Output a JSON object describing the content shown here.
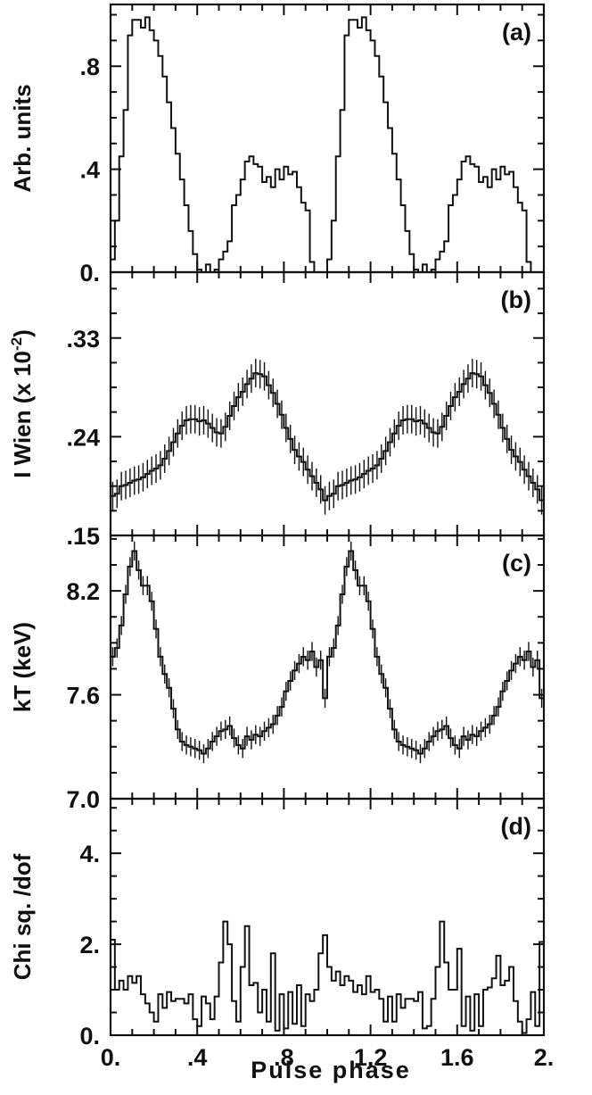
{
  "chart_data": [
    {
      "type": "line",
      "panel_label": "(a)",
      "ylabel": "Arb. units",
      "yticks": [
        0.0,
        0.4,
        0.8
      ],
      "ytick_labels": [
        "0.",
        ".4",
        ".8"
      ],
      "ylim": [
        0.0,
        1.04
      ],
      "xlim": [
        0.0,
        2.0
      ],
      "step": 0.02,
      "values": [
        0.05,
        0.2,
        0.45,
        0.63,
        0.92,
        0.98,
        0.98,
        0.95,
        0.99,
        0.94,
        0.9,
        0.84,
        0.76,
        0.66,
        0.56,
        0.46,
        0.36,
        0.26,
        0.16,
        0.07,
        0.01,
        0.0,
        0.03,
        0.0,
        0.01,
        0.05,
        0.08,
        0.12,
        0.26,
        0.3,
        0.36,
        0.43,
        0.45,
        0.42,
        0.41,
        0.35,
        0.37,
        0.33,
        0.4,
        0.36,
        0.41,
        0.38,
        0.39,
        0.33,
        0.27,
        0.24,
        0.04,
        0.0,
        0.0,
        0.0,
        0.05,
        0.2,
        0.45,
        0.63,
        0.92,
        0.98,
        0.98,
        0.95,
        0.99,
        0.94,
        0.9,
        0.84,
        0.76,
        0.66,
        0.56,
        0.46,
        0.36,
        0.26,
        0.16,
        0.07,
        0.01,
        0.0,
        0.03,
        0.0,
        0.01,
        0.05,
        0.08,
        0.12,
        0.26,
        0.3,
        0.36,
        0.43,
        0.45,
        0.42,
        0.41,
        0.35,
        0.37,
        0.33,
        0.4,
        0.36,
        0.41,
        0.38,
        0.39,
        0.33,
        0.27,
        0.24,
        0.04,
        0.0,
        0.0,
        0.0
      ],
      "errors": null
    },
    {
      "type": "line",
      "panel_label": "(b)",
      "ylabel": "I Wien (x 10",
      "ylabel_exponent": "-2",
      "ylabel_suffix": ")",
      "yticks": [
        0.15,
        0.24,
        0.33
      ],
      "ytick_labels": [
        ".15",
        ".24",
        ".33"
      ],
      "ylim": [
        0.15,
        0.39
      ],
      "xlim": [
        0.0,
        2.0
      ],
      "step": 0.02,
      "values": [
        0.186,
        0.188,
        0.195,
        0.196,
        0.198,
        0.2,
        0.201,
        0.203,
        0.206,
        0.209,
        0.211,
        0.214,
        0.22,
        0.227,
        0.235,
        0.243,
        0.25,
        0.255,
        0.256,
        0.256,
        0.254,
        0.255,
        0.252,
        0.248,
        0.244,
        0.243,
        0.249,
        0.259,
        0.268,
        0.276,
        0.281,
        0.288,
        0.293,
        0.298,
        0.297,
        0.295,
        0.287,
        0.28,
        0.27,
        0.26,
        0.248,
        0.238,
        0.228,
        0.222,
        0.217,
        0.21,
        0.204,
        0.198,
        0.192,
        0.182,
        0.186,
        0.188,
        0.195,
        0.196,
        0.198,
        0.2,
        0.201,
        0.203,
        0.206,
        0.209,
        0.211,
        0.214,
        0.22,
        0.227,
        0.235,
        0.243,
        0.25,
        0.255,
        0.256,
        0.256,
        0.254,
        0.255,
        0.252,
        0.248,
        0.244,
        0.243,
        0.249,
        0.259,
        0.268,
        0.276,
        0.281,
        0.288,
        0.293,
        0.298,
        0.297,
        0.295,
        0.287,
        0.28,
        0.27,
        0.26,
        0.248,
        0.238,
        0.228,
        0.222,
        0.217,
        0.21,
        0.204,
        0.198,
        0.192,
        0.182
      ],
      "errors": 0.013
    },
    {
      "type": "line",
      "panel_label": "(c)",
      "ylabel": "kT (keV)",
      "yticks": [
        7.0,
        7.6,
        8.2
      ],
      "ytick_labels": [
        "7.0",
        "7.6",
        "8.2"
      ],
      "ylim": [
        7.0,
        8.52
      ],
      "xlim": [
        0.0,
        2.0
      ],
      "step": 0.02,
      "values": [
        7.82,
        7.87,
        8.0,
        8.18,
        8.34,
        8.43,
        8.32,
        8.23,
        8.23,
        8.14,
        7.98,
        7.82,
        7.72,
        7.64,
        7.52,
        7.4,
        7.33,
        7.31,
        7.3,
        7.29,
        7.28,
        7.26,
        7.29,
        7.33,
        7.36,
        7.39,
        7.4,
        7.42,
        7.35,
        7.31,
        7.29,
        7.36,
        7.34,
        7.37,
        7.36,
        7.39,
        7.41,
        7.43,
        7.48,
        7.53,
        7.62,
        7.68,
        7.74,
        7.78,
        7.82,
        7.8,
        7.85,
        7.76,
        7.8,
        7.58,
        7.82,
        7.87,
        8.0,
        8.18,
        8.34,
        8.43,
        8.32,
        8.23,
        8.23,
        8.14,
        7.98,
        7.82,
        7.72,
        7.64,
        7.52,
        7.4,
        7.33,
        7.31,
        7.3,
        7.29,
        7.28,
        7.26,
        7.29,
        7.33,
        7.36,
        7.39,
        7.4,
        7.42,
        7.35,
        7.31,
        7.29,
        7.36,
        7.34,
        7.37,
        7.36,
        7.39,
        7.41,
        7.43,
        7.48,
        7.53,
        7.62,
        7.68,
        7.74,
        7.78,
        7.82,
        7.8,
        7.85,
        7.76,
        7.8,
        7.58
      ],
      "errors": 0.055
    },
    {
      "type": "line",
      "panel_label": "(d)",
      "ylabel": "Chi sq. /dof",
      "yticks": [
        0.0,
        2.0,
        4.0
      ],
      "ytick_labels": [
        "0.",
        "2.",
        "4."
      ],
      "ylim": [
        0.0,
        5.2
      ],
      "xlim": [
        0.0,
        2.0
      ],
      "step": 0.02,
      "xticks": [
        0.0,
        0.4,
        0.8,
        1.2,
        1.6,
        2.0
      ],
      "xtick_labels": [
        "0.",
        ".4",
        ".8",
        "1.2",
        "1.6",
        "2."
      ],
      "xlabel": "Pulse phase",
      "values": [
        2.1,
        1.0,
        1.2,
        1.0,
        1.3,
        1.15,
        1.3,
        0.9,
        0.7,
        0.5,
        0.3,
        0.9,
        0.6,
        0.95,
        0.75,
        0.8,
        0.8,
        0.7,
        0.9,
        0.35,
        0.2,
        0.85,
        0.7,
        0.35,
        0.85,
        1.6,
        2.5,
        2.0,
        0.75,
        0.3,
        1.5,
        2.4,
        1.1,
        1.15,
        0.5,
        1.0,
        0.3,
        1.8,
        0.1,
        0.9,
        0.15,
        0.95,
        0.25,
        1.1,
        0.2,
        0.9,
        0.75,
        1.0,
        1.8,
        2.2,
        1.5,
        1.2,
        1.4,
        1.1,
        1.3,
        1.2,
        0.95,
        1.1,
        0.9,
        1.3,
        0.95,
        1.0,
        0.8,
        0.3,
        0.85,
        0.3,
        0.9,
        0.6,
        0.8,
        0.8,
        0.75,
        0.95,
        0.15,
        0.2,
        0.8,
        1.5,
        2.5,
        1.6,
        1.0,
        1.0,
        1.9,
        0.2,
        0.85,
        0.1,
        0.9,
        0.2,
        1.0,
        1.05,
        1.25,
        1.75,
        1.1,
        1.2,
        1.5,
        0.75,
        0.3,
        0.05,
        0.35,
        0.95,
        0.2,
        2.05
      ],
      "errors": null
    }
  ]
}
